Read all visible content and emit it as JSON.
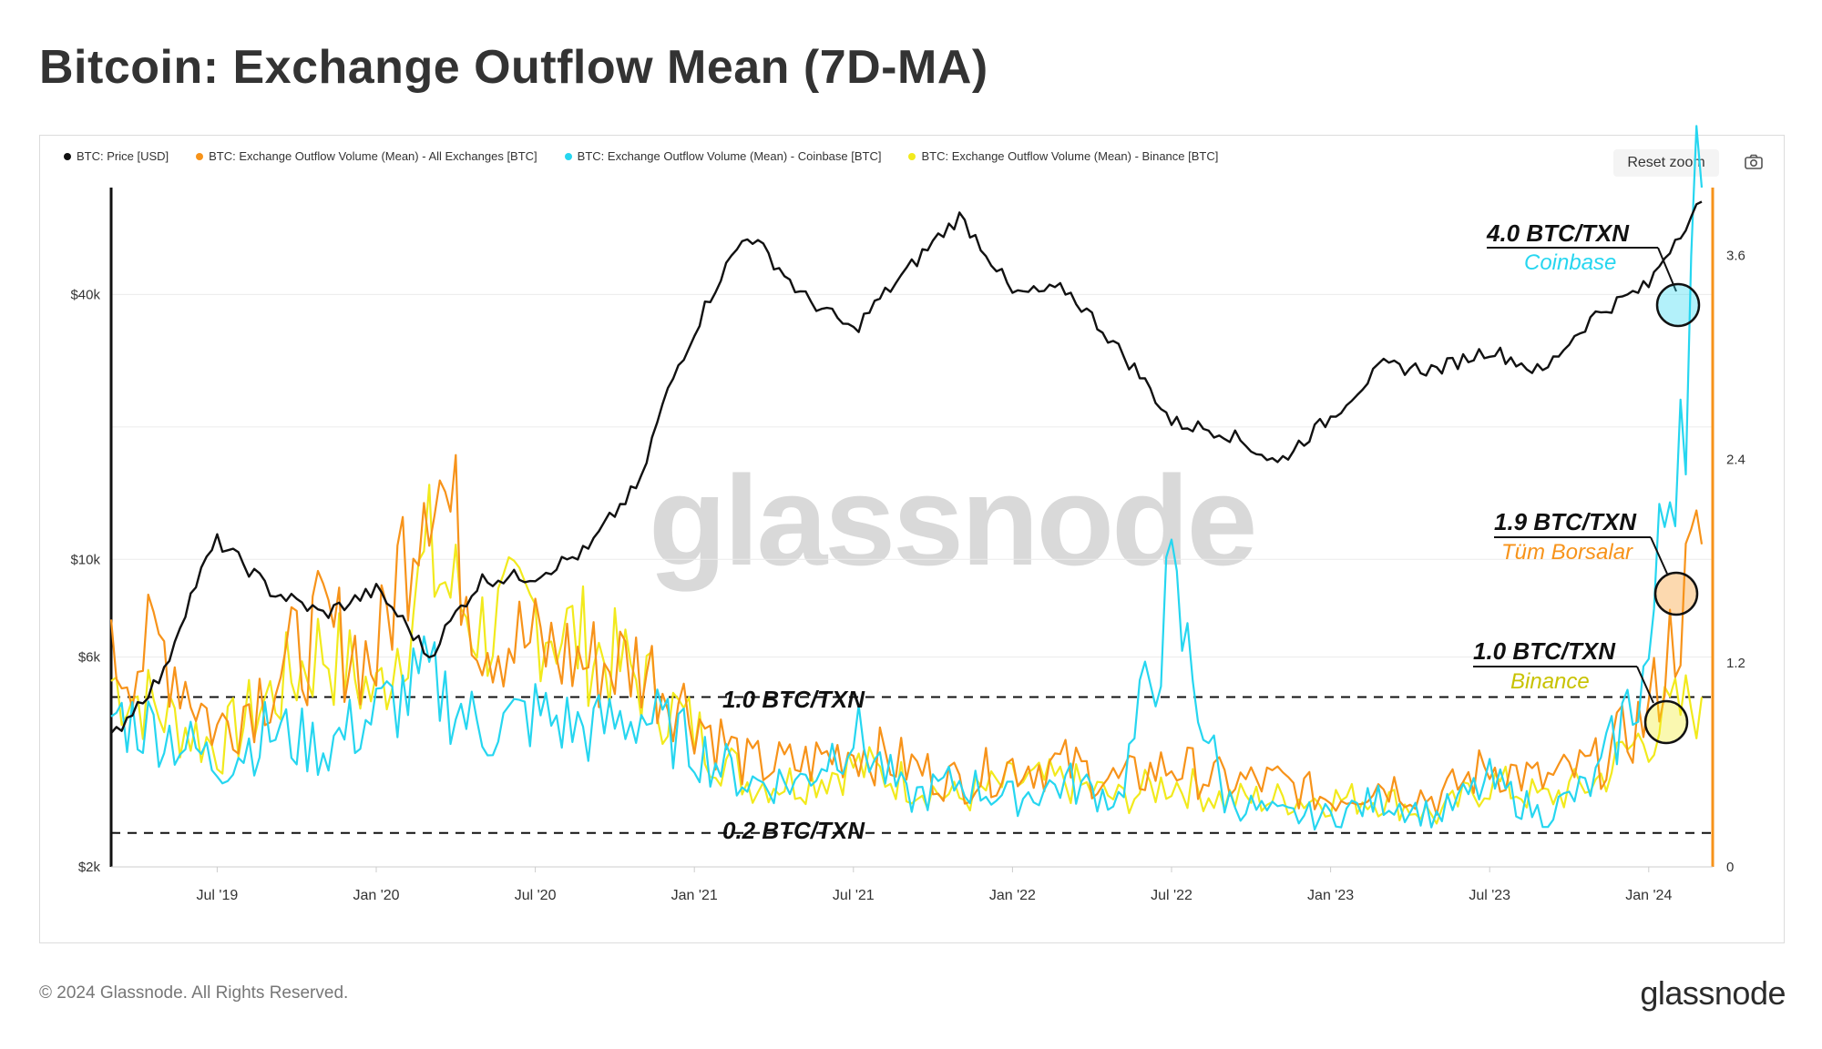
{
  "title": "Bitcoin: Exchange Outflow Mean (7D-MA)",
  "legend": [
    {
      "label": "BTC: Price [USD]",
      "color": "#111111"
    },
    {
      "label": "BTC: Exchange Outflow Volume (Mean) - All Exchanges [BTC]",
      "color": "#f7931a"
    },
    {
      "label": "BTC: Exchange Outflow Volume (Mean) - Coinbase [BTC]",
      "color": "#26d6f0"
    },
    {
      "label": "BTC: Exchange Outflow Volume (Mean) - Binance [BTC]",
      "color": "#f2ea1d"
    }
  ],
  "toolbar": {
    "reset_zoom": "Reset zoom",
    "camera_icon": "camera-icon"
  },
  "watermark": "glassnode",
  "footer": {
    "copyright": "© 2024 Glassnode. All Rights Reserved.",
    "logo": "glassnode"
  },
  "annotations": {
    "coinbase_value": "4.0 BTC/TXN",
    "coinbase_label": "Coinbase",
    "all_value": "1.9 BTC/TXN",
    "all_label": "Tüm Borsalar",
    "binance_value": "1.0 BTC/TXN",
    "binance_label": "Binance",
    "line_1": "1.0 BTC/TXN",
    "line_02": "0.2 BTC/TXN"
  },
  "chart_data": {
    "type": "line",
    "x_ticks": [
      "Jul '19",
      "Jan '20",
      "Jul '20",
      "Jan '21",
      "Jul '21",
      "Jan '22",
      "Jul '22",
      "Jan '23",
      "Jul '23",
      "Jan '24"
    ],
    "y_left": {
      "label": "",
      "scale": "log",
      "ticks": [
        "$40k",
        "$10k",
        "$6k",
        "$2k"
      ],
      "range": [
        2000,
        70000
      ]
    },
    "y_right": {
      "label": "",
      "ticks": [
        "3.6",
        "2.4",
        "1.2",
        "0"
      ],
      "range": [
        0,
        4.0
      ]
    },
    "reference_lines": [
      1.0,
      0.2
    ],
    "x": [
      "2019-03",
      "2019-05",
      "2019-07",
      "2019-09",
      "2019-11",
      "2020-01",
      "2020-03",
      "2020-05",
      "2020-07",
      "2020-09",
      "2020-11",
      "2021-01",
      "2021-03",
      "2021-05",
      "2021-07",
      "2021-09",
      "2021-11",
      "2022-01",
      "2022-03",
      "2022-05",
      "2022-07",
      "2022-09",
      "2022-11",
      "2023-01",
      "2023-03",
      "2023-05",
      "2023-07",
      "2023-09",
      "2023-11",
      "2024-01",
      "2024-03"
    ],
    "series": [
      {
        "name": "BTC: Price [USD]",
        "axis": "left",
        "values": [
          3900,
          5500,
          11000,
          8500,
          7500,
          8500,
          6000,
          9000,
          9200,
          10500,
          15000,
          33000,
          55000,
          40000,
          33000,
          45000,
          60000,
          40000,
          41000,
          30000,
          20500,
          19500,
          16500,
          21000,
          27500,
          27000,
          30000,
          26500,
          36000,
          42000,
          65000
        ]
      },
      {
        "name": "BTC: Exchange Outflow Volume (Mean) - All Exchanges [BTC]",
        "axis": "right",
        "values": [
          1.2,
          1.3,
          0.8,
          1.1,
          1.4,
          1.2,
          2.5,
          1.4,
          1.3,
          1.2,
          1.2,
          0.9,
          0.6,
          0.6,
          0.7,
          0.6,
          0.5,
          0.6,
          0.6,
          0.5,
          0.6,
          0.5,
          0.5,
          0.4,
          0.5,
          0.4,
          0.6,
          0.5,
          0.6,
          0.9,
          1.9
        ]
      },
      {
        "name": "BTC: Exchange Outflow Volume (Mean) - Coinbase [BTC]",
        "axis": "right",
        "values": [
          0.9,
          0.8,
          0.6,
          0.8,
          0.7,
          0.9,
          1.1,
          0.8,
          0.9,
          0.8,
          0.9,
          0.7,
          0.5,
          0.5,
          0.8,
          0.4,
          0.5,
          0.4,
          0.5,
          0.4,
          1.6,
          0.4,
          0.3,
          0.3,
          0.4,
          0.3,
          0.5,
          0.3,
          0.5,
          1.2,
          4.0
        ]
      },
      {
        "name": "BTC: Exchange Outflow Volume (Mean) - Binance [BTC]",
        "axis": "right",
        "values": [
          1.1,
          0.9,
          0.7,
          1.0,
          1.3,
          1.0,
          1.8,
          1.4,
          1.5,
          1.3,
          1.1,
          0.8,
          0.5,
          0.5,
          0.6,
          0.5,
          0.4,
          0.5,
          0.5,
          0.4,
          0.5,
          0.4,
          0.4,
          0.4,
          0.4,
          0.3,
          0.5,
          0.4,
          0.5,
          0.8,
          1.0
        ]
      }
    ]
  }
}
